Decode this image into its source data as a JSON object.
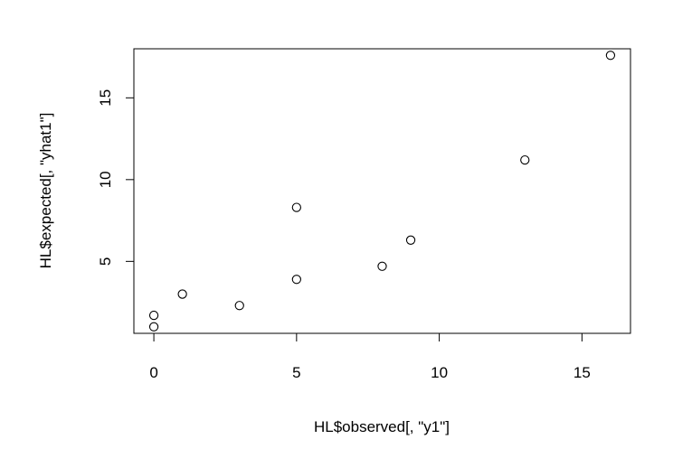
{
  "chart_data": {
    "type": "scatter",
    "title": "",
    "xlabel": "HL$observed[, \"y1\"]",
    "ylabel": "HL$expected[, \"yhat1\"]",
    "xlim": [
      -0.7,
      16.7
    ],
    "ylim": [
      0.6,
      18.0
    ],
    "xticks": [
      0,
      5,
      10,
      15
    ],
    "yticks": [
      5,
      10,
      15
    ],
    "xtick_labels": [
      "0",
      "5",
      "10",
      "15"
    ],
    "ytick_labels": [
      "5",
      "10",
      "15"
    ],
    "grid": false,
    "legend": false,
    "marker": "open-circle",
    "point_color": "#000000",
    "points": [
      {
        "x": 0,
        "y": 1.0
      },
      {
        "x": 0,
        "y": 1.7
      },
      {
        "x": 1,
        "y": 3.0
      },
      {
        "x": 3,
        "y": 2.3
      },
      {
        "x": 5,
        "y": 3.9
      },
      {
        "x": 5,
        "y": 8.3
      },
      {
        "x": 8,
        "y": 4.7
      },
      {
        "x": 9,
        "y": 6.3
      },
      {
        "x": 13,
        "y": 11.2
      },
      {
        "x": 16,
        "y": 17.6
      }
    ]
  }
}
